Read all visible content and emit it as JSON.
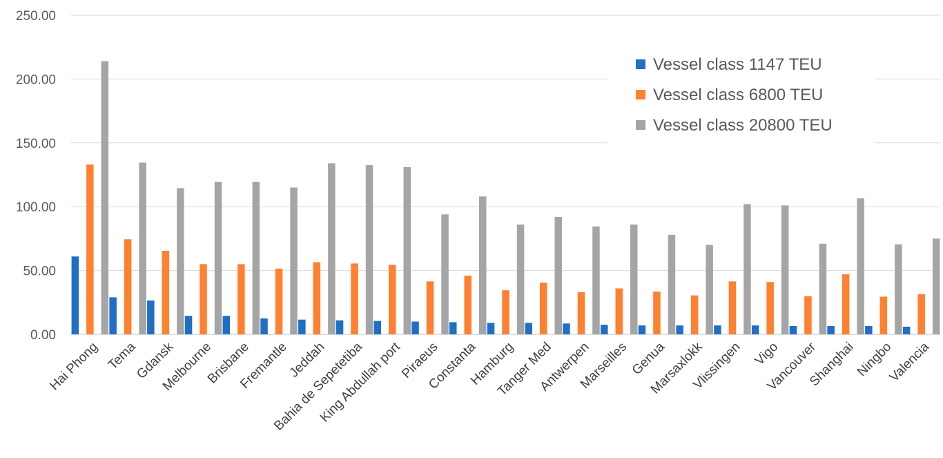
{
  "chart_data": {
    "type": "bar",
    "title": "",
    "xlabel": "",
    "ylabel": "",
    "ylim": [
      0,
      250
    ],
    "y_ticks": [
      "0.00",
      "50.00",
      "100.00",
      "150.00",
      "200.00",
      "250.00"
    ],
    "grid": true,
    "legend_position": "top-right",
    "categories": [
      "Hai Phong",
      "Tema",
      "Gdansk",
      "Melbourne",
      "Brisbane",
      "Fremantle",
      "Jeddah",
      "Bahia de Sepetetiba",
      "King Abdullah port",
      "Piraeus",
      "Constanta",
      "Hamburg",
      "Tanger Med",
      "Antwerpen",
      "Marseilles",
      "Genua",
      "Marsaxlokk",
      "Vlissingen",
      "Vigo",
      "Vancouver",
      "Shanghai",
      "Ningbo",
      "Valencia"
    ],
    "series": [
      {
        "name": "Vessel class 1147 TEU",
        "color": "#1f6fc5",
        "values": [
          61,
          29,
          26.5,
          14.5,
          14.5,
          12.5,
          11.5,
          11,
          10.5,
          10,
          9.5,
          9,
          9,
          8.5,
          7.5,
          7,
          7,
          7,
          7,
          6.5,
          6.5,
          6.5,
          6
        ]
      },
      {
        "name": "Vessel class 6800 TEU",
        "color": "#ff8030",
        "values": [
          133,
          74.5,
          65.5,
          55,
          55,
          51.5,
          56.5,
          55.5,
          54.5,
          41.5,
          46,
          34.5,
          40.5,
          33,
          36,
          33.5,
          30.5,
          41.5,
          41,
          30,
          47,
          29.5,
          31.5
        ]
      },
      {
        "name": "Vessel class 20800 TEU",
        "color": "#a5a5a5",
        "values": [
          214,
          134.5,
          114.5,
          119.5,
          119.5,
          115,
          134,
          132.5,
          131,
          94,
          108,
          86,
          92,
          84.5,
          86,
          78,
          70,
          102,
          101,
          71,
          106.5,
          70.5,
          75
        ]
      }
    ]
  }
}
